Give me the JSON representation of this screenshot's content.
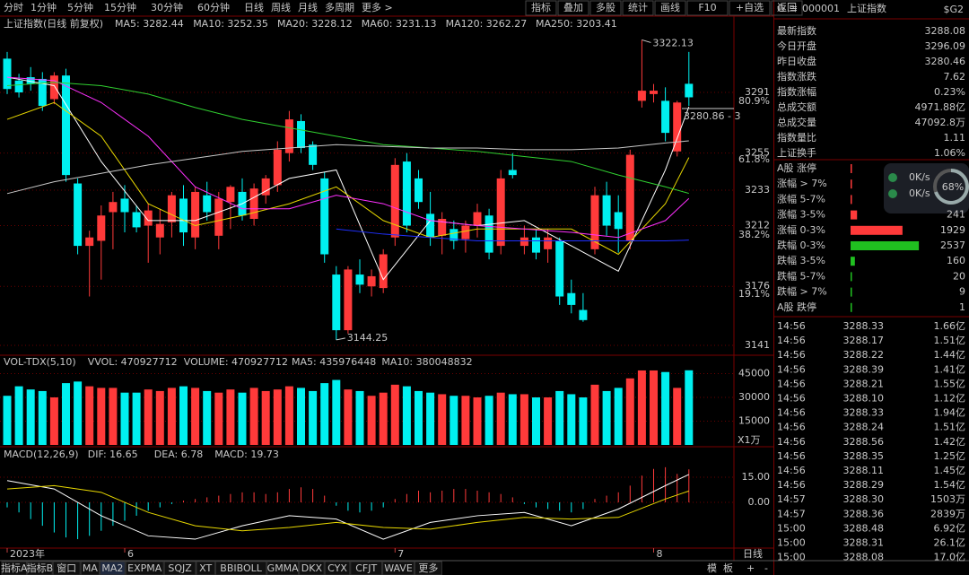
{
  "toolbar": {
    "left": [
      "分时",
      "1分钟",
      "5分钟",
      "15分钟",
      "30分钟",
      "60分钟",
      "日线",
      "周线",
      "月线",
      "多周期",
      "更多 >"
    ],
    "active": 6,
    "right": [
      "指标",
      "叠加",
      "多股",
      "统计",
      "画线",
      "F10",
      "+自选",
      "返回"
    ]
  },
  "kline": {
    "title": "上证指数(日线 前复权)",
    "ylim": [
      3135.7,
      3336.2
    ],
    "yticks": [
      3291,
      3255,
      3233,
      3212,
      3176,
      3141
    ],
    "fib": [
      {
        "value": 3285.7,
        "label": "80.9%"
      },
      {
        "value": 3251.1,
        "label": "61.8%"
      },
      {
        "value": 3206.4,
        "label": "38.2%"
      },
      {
        "value": 3171.3,
        "label": "19.1%"
      }
    ],
    "up_color": "#ff3a3a",
    "down_color": "#00f0f0",
    "candles": [
      [
        3311,
        3315,
        3290,
        3293
      ],
      [
        3298,
        3302,
        3288,
        3291
      ],
      [
        3300,
        3306,
        3292,
        3296
      ],
      [
        3299,
        3303,
        3280,
        3283
      ],
      [
        3287,
        3303,
        3284,
        3301
      ],
      [
        3301,
        3305,
        3238,
        3242
      ],
      [
        3237,
        3240,
        3195,
        3200
      ],
      [
        3200,
        3209,
        3170,
        3205
      ],
      [
        3203,
        3224,
        3180,
        3218
      ],
      [
        3220,
        3232,
        3198,
        3226
      ],
      [
        3228,
        3236,
        3208,
        3220
      ],
      [
        3220,
        3224,
        3208,
        3211
      ],
      [
        3212,
        3225,
        3190,
        3221
      ],
      [
        3205,
        3222,
        3195,
        3213
      ],
      [
        3214,
        3232,
        3205,
        3230
      ],
      [
        3228,
        3236,
        3200,
        3208
      ],
      [
        3205,
        3235,
        3198,
        3232
      ],
      [
        3230,
        3238,
        3215,
        3220
      ],
      [
        3206,
        3232,
        3198,
        3228
      ],
      [
        3226,
        3236,
        3210,
        3235
      ],
      [
        3232,
        3240,
        3215,
        3218
      ],
      [
        3216,
        3237,
        3212,
        3234
      ],
      [
        3230,
        3242,
        3225,
        3240
      ],
      [
        3236,
        3262,
        3232,
        3257
      ],
      [
        3255,
        3280,
        3250,
        3275
      ],
      [
        3274,
        3278,
        3255,
        3258
      ],
      [
        3260,
        3262,
        3245,
        3248
      ],
      [
        3240,
        3244,
        3190,
        3195
      ],
      [
        3183,
        3188,
        3144.25,
        3150
      ],
      [
        3150,
        3188,
        3148,
        3186
      ],
      [
        3183,
        3192,
        3172,
        3177
      ],
      [
        3176,
        3186,
        3170,
        3182
      ],
      [
        3175,
        3198,
        3172,
        3195
      ],
      [
        3205,
        3252,
        3200,
        3248
      ],
      [
        3250,
        3255,
        3208,
        3212
      ],
      [
        3240,
        3245,
        3222,
        3226
      ],
      [
        3219,
        3232,
        3200,
        3205
      ],
      [
        3206,
        3220,
        3195,
        3216
      ],
      [
        3210,
        3215,
        3198,
        3203
      ],
      [
        3204,
        3215,
        3196,
        3212
      ],
      [
        3212,
        3225,
        3205,
        3220
      ],
      [
        3218,
        3222,
        3192,
        3196
      ],
      [
        3200,
        3245,
        3195,
        3240
      ],
      [
        3245,
        3255,
        3240,
        3242
      ],
      [
        3200,
        3212,
        3195,
        3205
      ],
      [
        3205,
        3210,
        3192,
        3196
      ],
      [
        3198,
        3210,
        3190,
        3205
      ],
      [
        3203,
        3205,
        3165,
        3170
      ],
      [
        3172,
        3180,
        3160,
        3165
      ],
      [
        3162,
        3172,
        3155,
        3156
      ],
      [
        3198,
        3235,
        3195,
        3230
      ],
      [
        3230,
        3238,
        3206,
        3212
      ],
      [
        3220,
        3230,
        3196,
        3210
      ],
      [
        3203,
        3257,
        3198,
        3254
      ],
      [
        3286,
        3322.13,
        3282,
        3292
      ],
      [
        3290,
        3296,
        3285,
        3292
      ],
      [
        3286,
        3294,
        3262,
        3267
      ],
      [
        3256,
        3286,
        3253,
        3285
      ],
      [
        3296.09,
        3315,
        3283,
        3288.08
      ]
    ],
    "ma_x": [
      0,
      4,
      8,
      12,
      16,
      20,
      24,
      28,
      32,
      36,
      40,
      44,
      48,
      52,
      56,
      58
    ],
    "mas": [
      {
        "label": "MA5: 3282.44",
        "color": "#ffffff",
        "values": [
          3300,
          3295,
          3250,
          3215,
          3215,
          3225,
          3240,
          3245,
          3180,
          3215,
          3212,
          3215,
          3200,
          3185,
          3245,
          3282.44
        ]
      },
      {
        "label": "MA10: 3252.35",
        "color": "#e8d800",
        "values": [
          3275,
          3285,
          3265,
          3225,
          3212,
          3218,
          3225,
          3235,
          3215,
          3205,
          3210,
          3210,
          3210,
          3195,
          3225,
          3252.35
        ]
      },
      {
        "label": "MA20: 3228.12",
        "color": "#ff30ff",
        "values": [
          3300,
          3298,
          3285,
          3265,
          3235,
          3222,
          3222,
          3230,
          3225,
          3215,
          3212,
          3210,
          3208,
          3205,
          3215,
          3228.12
        ]
      },
      {
        "label": "MA60: 3231.13",
        "color": "#30d030",
        "values": [
          3295,
          3297,
          3295,
          3290,
          3282,
          3275,
          3270,
          3265,
          3260,
          3258,
          3256,
          3253,
          3250,
          3242,
          3235,
          3231.13
        ]
      },
      {
        "label": "MA120: 3262.27",
        "color": "#c8c8c8",
        "values": [
          3231,
          3238,
          3243,
          3248,
          3252,
          3256,
          3258,
          3260,
          3259,
          3258,
          3258,
          3257,
          3257,
          3258,
          3261,
          3262.27
        ]
      },
      {
        "label": "MA250: 3203.41",
        "color": "#2030ff",
        "values": [
          null,
          null,
          null,
          null,
          null,
          null,
          null,
          3210,
          3207,
          3205,
          3203,
          3203,
          3203,
          3203,
          3203,
          3203.41
        ]
      }
    ],
    "high_label": {
      "index": 54,
      "text": "3322.13"
    },
    "low_label": {
      "index": 28,
      "text": "3144.25"
    },
    "cursor_label": "3280.86 - 3"
  },
  "volume": {
    "legend": [
      {
        "text": "VOL-TDX(5,10)",
        "color": "#c8c8c8"
      },
      {
        "text": "VVOL: 470927712",
        "color": "#c8c8c8"
      },
      {
        "text": "VOLUME: 470927712",
        "color": "#e8d800"
      },
      {
        "text": "MA5: 435976448",
        "color": "#e8d800"
      },
      {
        "text": "MA10: 380048832",
        "color": "#ff30ff"
      }
    ],
    "ylim": [
      0,
      54340
    ],
    "yticks": [
      45000,
      30000,
      15000
    ],
    "unit": "X1万",
    "values": [
      31000,
      37000,
      35000,
      34000,
      30000,
      39000,
      40000,
      37000,
      36000,
      36000,
      33000,
      33000,
      35000,
      34000,
      36000,
      37000,
      36000,
      34000,
      33000,
      35000,
      33000,
      36000,
      34000,
      35000,
      37000,
      36000,
      34000,
      39000,
      41000,
      35000,
      34000,
      31000,
      33000,
      38000,
      37000,
      34000,
      33000,
      32000,
      31000,
      31000,
      30000,
      31000,
      33000,
      32000,
      32000,
      30000,
      30000,
      34000,
      32000,
      30000,
      38000,
      34000,
      36000,
      42000,
      47000,
      47000,
      46000,
      36000,
      47092.8
    ]
  },
  "macd": {
    "legend": [
      {
        "text": "MACD(12,26,9)",
        "color": "#c8c8c8"
      },
      {
        "text": "DIF: 16.65",
        "color": "#ffffff"
      },
      {
        "text": "DEA: 6.78",
        "color": "#e8d800"
      },
      {
        "text": "MACD: 19.73",
        "color": "#ff30ff"
      }
    ],
    "ylim": [
      -26.8,
      29.5
    ],
    "yticks": [
      {
        "value": 15,
        "label": "15.00"
      },
      {
        "value": 0,
        "label": "0.00"
      }
    ],
    "values": [
      -3,
      -6,
      -10,
      -14,
      -18,
      -21,
      -22,
      -20,
      -17,
      -14,
      -11,
      -8,
      -5,
      -3,
      -1,
      1,
      2,
      3,
      4,
      5,
      6,
      6,
      5,
      6,
      8,
      9,
      8,
      4,
      -2,
      -5,
      -6,
      -5,
      -3,
      2,
      5,
      7,
      6,
      7,
      8,
      8,
      7,
      6,
      5,
      3,
      -1,
      -3,
      -4,
      -5,
      -6,
      -4,
      2,
      4,
      6,
      10,
      16,
      20,
      21,
      17,
      19.73
    ],
    "dif": [
      13,
      8,
      -8,
      -20,
      -22,
      -14,
      -8,
      -10,
      -22,
      -12,
      -8,
      -6,
      -14,
      -4,
      10,
      16.65
    ],
    "dea": [
      8,
      10,
      6,
      -6,
      -14,
      -17,
      -15,
      -12,
      -15,
      -16,
      -12,
      -9,
      -10,
      -9,
      2,
      6.78
    ],
    "xticks": [
      {
        "value": 0,
        "label": "2023年"
      },
      {
        "value": 10,
        "label": "6"
      },
      {
        "value": 33,
        "label": "7"
      },
      {
        "value": 55,
        "label": "8"
      }
    ],
    "period": "日线"
  },
  "quote": {
    "flag": "G",
    "code": "000001",
    "name": "上证指数",
    "tag": "$G2",
    "stats": [
      {
        "label": "最新指数",
        "value": "3288.08",
        "color": "#ff3a3a"
      },
      {
        "label": "今日开盘",
        "value": "3296.09",
        "color": "#ff3a3a"
      },
      {
        "label": "昨日收盘",
        "value": "3280.46",
        "color": "#ffffff"
      },
      {
        "label": "指数涨跌",
        "value": "7.62",
        "color": "#ff3a3a"
      },
      {
        "label": "指数涨幅",
        "value": "0.23%",
        "color": "#ff3a3a"
      },
      {
        "label": "总成交额",
        "value": "4971.88亿",
        "color": "#e8d800"
      },
      {
        "label": "总成交量",
        "value": "47092.8万",
        "color": "#e8d800"
      },
      {
        "label": "指数量比",
        "value": "1.11",
        "color": "#ffffff"
      },
      {
        "label": "上证换手",
        "value": "1.06%",
        "color": "#ffffff"
      }
    ],
    "dist": [
      {
        "label": "A股 涨停",
        "bar": 20,
        "color": "#ff3a3a"
      },
      {
        "label": "涨幅 > 7%",
        "bar": 10,
        "color": "#ff3a3a"
      },
      {
        "label": "涨幅 5-7%",
        "bar": 30,
        "color": "#ff3a3a"
      },
      {
        "label": "涨幅 3-5%",
        "count": 241,
        "color": "#ff3a3a"
      },
      {
        "label": "涨幅 0-3%",
        "count": 1929,
        "color": "#ff3a3a"
      },
      {
        "label": "跌幅 0-3%",
        "count": 2537,
        "color": "#20c020"
      },
      {
        "label": "跌幅 3-5%",
        "count": 160,
        "color": "#20c020"
      },
      {
        "label": "跌幅 5-7%",
        "count": 20,
        "color": "#20c020"
      },
      {
        "label": "跌幅 > 7%",
        "count": 9,
        "color": "#20c020"
      },
      {
        "label": "A股 跌停",
        "count": 1,
        "color": "#20c020"
      }
    ],
    "widget": {
      "rate1": "0K/s",
      "rate2": "0K/s",
      "pct": "68%"
    },
    "ticks": [
      [
        "14:56",
        "3288.33",
        "1.66亿"
      ],
      [
        "14:56",
        "3288.17",
        "1.51亿"
      ],
      [
        "14:56",
        "3288.22",
        "1.44亿"
      ],
      [
        "14:56",
        "3288.39",
        "1.41亿"
      ],
      [
        "14:56",
        "3288.21",
        "1.55亿"
      ],
      [
        "14:56",
        "3288.10",
        "1.12亿"
      ],
      [
        "14:56",
        "3288.33",
        "1.94亿"
      ],
      [
        "14:56",
        "3288.24",
        "1.51亿"
      ],
      [
        "14:56",
        "3288.56",
        "1.42亿"
      ],
      [
        "14:56",
        "3288.35",
        "1.25亿"
      ],
      [
        "14:56",
        "3288.11",
        "1.45亿"
      ],
      [
        "14:56",
        "3288.29",
        "1.54亿"
      ],
      [
        "14:57",
        "3288.30",
        "1503万"
      ],
      [
        "14:57",
        "3288.36",
        "2839万"
      ],
      [
        "15:00",
        "3288.48",
        "6.92亿"
      ],
      [
        "15:00",
        "3288.31",
        "26.1亿"
      ],
      [
        "15:00",
        "3288.08",
        "17.0亿"
      ]
    ]
  },
  "bottom": {
    "tabs": [
      "指标A",
      "指标B",
      "窗口",
      "MA",
      "MA2",
      "EXPMA",
      "SQJZ",
      "XT",
      "BBIBOLL",
      "GMMA",
      "DKX",
      "CYX",
      "CFJT",
      "WAVE",
      "更多"
    ],
    "active": 4,
    "right": [
      "模",
      "板",
      "+",
      "-"
    ]
  }
}
